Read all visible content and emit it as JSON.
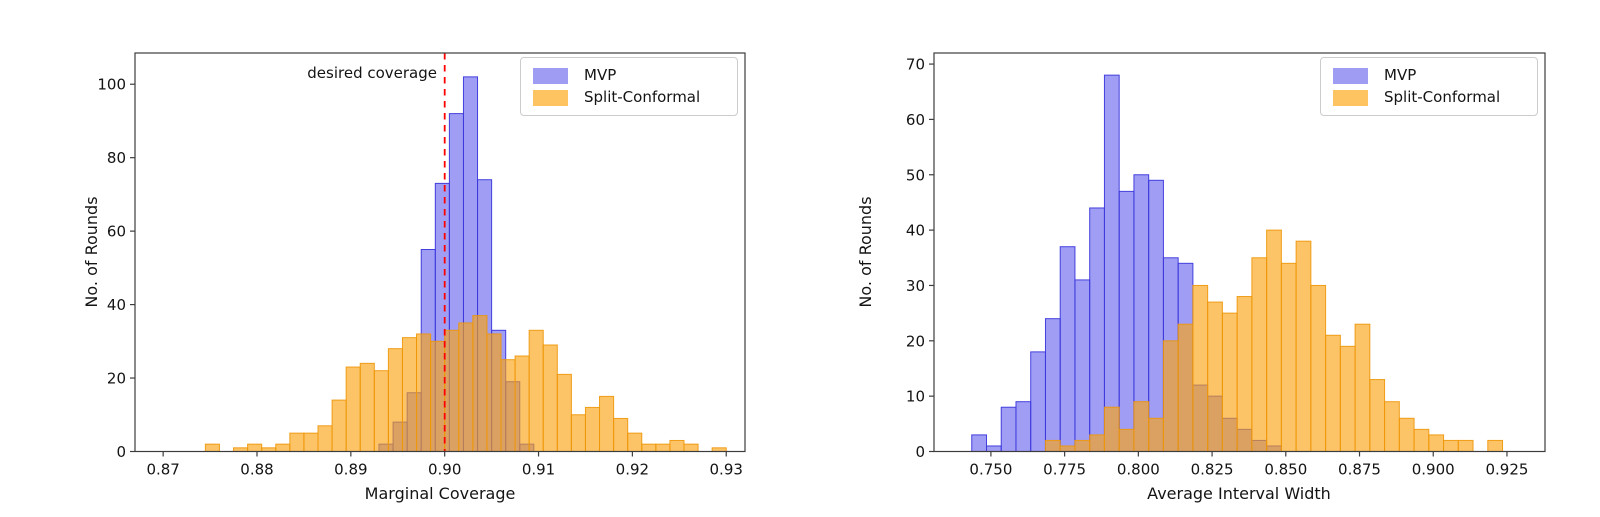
{
  "figure": {
    "background": "#ffffff"
  },
  "colors": {
    "mvp_fill": "rgba(82,78,235,0.55)",
    "mvp_edge": "rgba(60,56,220,0.95)",
    "split_conformal_fill": "rgba(250,163,15,0.64)",
    "split_conformal_edge": "rgba(238,150,8,0.9)",
    "mvp_legend_swatch": "#9f9df3",
    "split_conformal_legend_swatch": "#fdc461",
    "annotation_line": "#ff0000",
    "spine": "#3d3d3d",
    "text": "#141414"
  },
  "chart_data": [
    {
      "type": "bar",
      "subtype": "histogram",
      "title": "",
      "xlabel": "Marginal Coverage",
      "ylabel": "No. of Rounds",
      "xlim": [
        0.867,
        0.932
      ],
      "ylim": [
        0,
        108.5
      ],
      "grid": false,
      "xticks": [
        0.87,
        0.88,
        0.89,
        0.9,
        0.91,
        0.92,
        0.93
      ],
      "xtick_labels": [
        "0.87",
        "0.88",
        "0.89",
        "0.90",
        "0.91",
        "0.92",
        "0.93"
      ],
      "yticks": [
        0,
        20,
        40,
        60,
        80,
        100
      ],
      "ytick_labels": [
        "0",
        "20",
        "40",
        "60",
        "80",
        "100"
      ],
      "legend": {
        "position": "upper-right",
        "entries": [
          {
            "label": "MVP",
            "swatch": "#9f9df3"
          },
          {
            "label": "Split-Conformal",
            "swatch": "#fdc461"
          }
        ]
      },
      "annotation": {
        "text": "desired coverage",
        "x": 0.9,
        "line_style": "dashed",
        "line_color": "#ff0000"
      },
      "series": [
        {
          "name": "MVP",
          "fill": "rgba(82,78,235,0.55)",
          "edge": "rgba(60,56,220,0.95)",
          "bin_start": 0.893,
          "bin_width": 0.0015,
          "counts": [
            2,
            8,
            16,
            55,
            73,
            92,
            102,
            74,
            33,
            19,
            2
          ]
        },
        {
          "name": "Split-Conformal",
          "fill": "rgba(250,163,15,0.64)",
          "edge": "rgba(238,150,8,0.9)",
          "bin_start": 0.8745,
          "bin_width": 0.0015,
          "counts": [
            2,
            0,
            1,
            2,
            1,
            2,
            5,
            5,
            7,
            14,
            23,
            24,
            22,
            28,
            31,
            32,
            30,
            33,
            35,
            37,
            32,
            25,
            26,
            33,
            29,
            21,
            10,
            12,
            15,
            9,
            5,
            2,
            2,
            3,
            2,
            0,
            1
          ]
        }
      ]
    },
    {
      "type": "bar",
      "subtype": "histogram",
      "title": "",
      "xlabel": "Average Interval Width",
      "ylabel": "No. of Rounds",
      "xlim": [
        0.7307,
        0.9379
      ],
      "ylim": [
        0,
        72
      ],
      "grid": false,
      "xticks": [
        0.75,
        0.775,
        0.8,
        0.825,
        0.85,
        0.875,
        0.9,
        0.925
      ],
      "xtick_labels": [
        "0.750",
        "0.775",
        "0.800",
        "0.825",
        "0.850",
        "0.875",
        "0.900",
        "0.925"
      ],
      "yticks": [
        0,
        10,
        20,
        30,
        40,
        50,
        60,
        70
      ],
      "ytick_labels": [
        "0",
        "10",
        "20",
        "30",
        "40",
        "50",
        "60",
        "70"
      ],
      "legend": {
        "position": "upper-right",
        "entries": [
          {
            "label": "MVP",
            "swatch": "#9f9df3"
          },
          {
            "label": "Split-Conformal",
            "swatch": "#fdc461"
          }
        ]
      },
      "series": [
        {
          "name": "MVP",
          "fill": "rgba(82,78,235,0.55)",
          "edge": "rgba(60,56,220,0.95)",
          "bin_start": 0.7435,
          "bin_width": 0.005,
          "counts": [
            3,
            1,
            8,
            9,
            18,
            24,
            37,
            31,
            44,
            68,
            47,
            50,
            49,
            35,
            34,
            12,
            10,
            6,
            4,
            2,
            1
          ]
        },
        {
          "name": "Split-Conformal",
          "fill": "rgba(250,163,15,0.64)",
          "edge": "rgba(238,150,8,0.9)",
          "bin_start": 0.7685,
          "bin_width": 0.005,
          "counts": [
            2,
            1,
            2,
            3,
            8,
            4,
            9,
            6,
            20,
            23,
            30,
            27,
            25,
            28,
            35,
            40,
            34,
            38,
            30,
            21,
            19,
            23,
            13,
            9,
            6,
            4,
            3,
            2,
            2,
            0,
            2
          ]
        }
      ]
    }
  ]
}
